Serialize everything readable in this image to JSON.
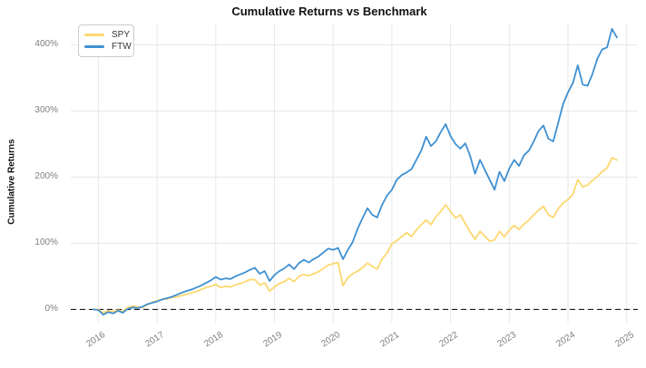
{
  "chart_data": {
    "type": "line",
    "title": "Cumulative Returns vs Benchmark",
    "xlabel": "",
    "ylabel": "Cumulative Returns",
    "legend_position": "upper-left",
    "grid": true,
    "zero_line": {
      "style": "dashed",
      "color": "#000000",
      "value": 0
    },
    "xlim": [
      2015.53,
      2025.19
    ],
    "ylim": [
      -20,
      432
    ],
    "x_ticks": [
      {
        "value": 2016,
        "label": "2016"
      },
      {
        "value": 2017,
        "label": "2017"
      },
      {
        "value": 2018,
        "label": "2018"
      },
      {
        "value": 2019,
        "label": "2019"
      },
      {
        "value": 2020,
        "label": "2020"
      },
      {
        "value": 2021,
        "label": "2021"
      },
      {
        "value": 2022,
        "label": "2022"
      },
      {
        "value": 2023,
        "label": "2023"
      },
      {
        "value": 2024,
        "label": "2024"
      },
      {
        "value": 2025,
        "label": "2025"
      }
    ],
    "y_ticks": [
      {
        "value": 0,
        "label": "0%"
      },
      {
        "value": 100,
        "label": "100%"
      },
      {
        "value": 200,
        "label": "200%"
      },
      {
        "value": 300,
        "label": "300%"
      },
      {
        "value": 400,
        "label": "400%"
      }
    ],
    "series_start_year": 2015.9167,
    "series_step_years": 0.083333,
    "series": [
      {
        "name": "SPY",
        "color": "#fcd86f",
        "unit": "percent",
        "values": [
          0,
          0,
          -5,
          -2,
          -3,
          -1,
          -3,
          3,
          5,
          4,
          3,
          7,
          11,
          13,
          15,
          16,
          18,
          19,
          21,
          23,
          25,
          27,
          30,
          33,
          35,
          38,
          33,
          35,
          34,
          37,
          39,
          42,
          45,
          45,
          37,
          40,
          28,
          34,
          39,
          42,
          47,
          42,
          50,
          53,
          51,
          54,
          57,
          62,
          67,
          69,
          71,
          36,
          48,
          54,
          58,
          63,
          70,
          65,
          61,
          76,
          85,
          99,
          104,
          110,
          116,
          110,
          120,
          128,
          135,
          128,
          140,
          148,
          158,
          148,
          138,
          143,
          130,
          117,
          106,
          118,
          111,
          103,
          105,
          118,
          110,
          120,
          127,
          121,
          129,
          135,
          143,
          150,
          156,
          143,
          139,
          152,
          161,
          166,
          174,
          196,
          185,
          188,
          195,
          201,
          208,
          214,
          229,
          226
        ]
      },
      {
        "name": "FTW",
        "color": "#3f90d1",
        "unit": "percent",
        "values": [
          0,
          -1,
          -8,
          -4,
          -6,
          -2,
          -5,
          1,
          3,
          2,
          4,
          8,
          10,
          12,
          15,
          17,
          19,
          22,
          25,
          28,
          30,
          33,
          36,
          40,
          44,
          49,
          45,
          47,
          46,
          50,
          53,
          56,
          60,
          63,
          54,
          58,
          43,
          52,
          58,
          62,
          68,
          61,
          70,
          75,
          71,
          76,
          80,
          86,
          92,
          90,
          93,
          76,
          90,
          102,
          122,
          138,
          153,
          143,
          139,
          158,
          172,
          181,
          196,
          203,
          207,
          212,
          226,
          240,
          261,
          247,
          254,
          268,
          280,
          262,
          250,
          243,
          251,
          232,
          205,
          226,
          211,
          196,
          181,
          208,
          194,
          213,
          226,
          217,
          233,
          240,
          254,
          270,
          278,
          258,
          254,
          282,
          310,
          328,
          342,
          369,
          340,
          338,
          356,
          379,
          393,
          396,
          424,
          411
        ]
      }
    ],
    "colors": {
      "grid": "#e7e7e7",
      "tick_text": "#7f7f7f",
      "title_text": "#111111",
      "background": "#ffffff"
    }
  }
}
